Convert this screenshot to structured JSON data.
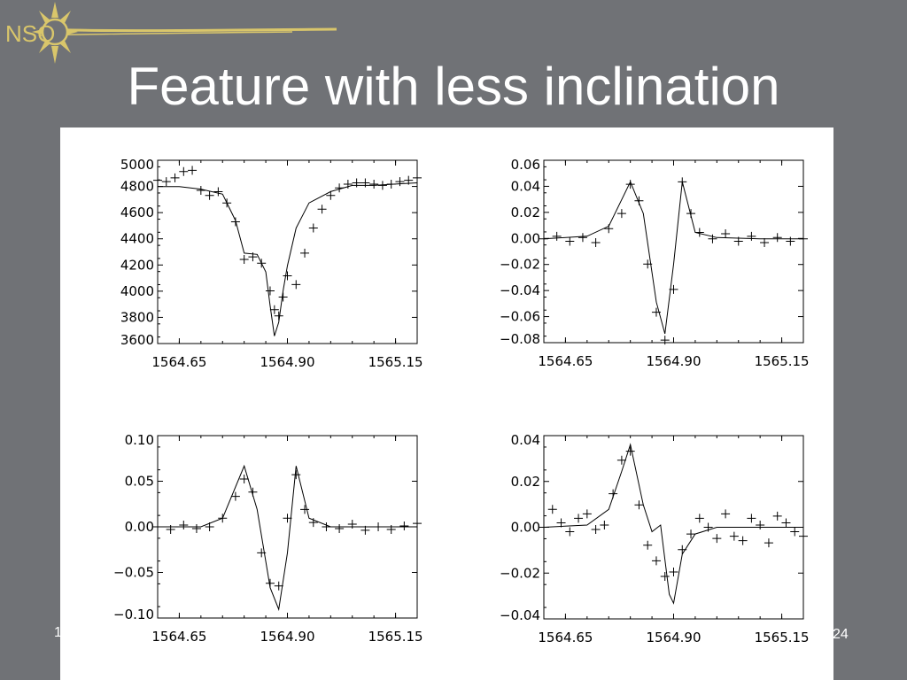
{
  "slide": {
    "title": "Feature with less inclination",
    "page_number": "24",
    "footer_left": "1",
    "logo_text": "NSO",
    "colors": {
      "background": "#707276",
      "logo": "#d9c66b",
      "title": "#ffffff",
      "panel": "#ffffff",
      "plot": "#000000"
    }
  },
  "chart_data": [
    {
      "type": "line",
      "panel": "top-left",
      "xlim": [
        1564.6,
        1565.2
      ],
      "ylim": [
        3580,
        5040
      ],
      "x_ticks": [
        "1564.65",
        "1564.90",
        "1565.15"
      ],
      "y_ticks": [
        "5000",
        "4800",
        "4600",
        "4400",
        "4200",
        "4000",
        "3800",
        "3600"
      ],
      "series": [
        {
          "style": "line",
          "x": [
            1564.6,
            1564.65,
            1564.7,
            1564.75,
            1564.78,
            1564.8,
            1564.83,
            1564.85,
            1564.86,
            1564.87,
            1564.88,
            1564.89,
            1564.9,
            1564.92,
            1564.95,
            1565.0,
            1565.05,
            1565.1,
            1565.15,
            1565.2
          ],
          "y": [
            4830,
            4830,
            4810,
            4770,
            4560,
            4300,
            4290,
            4150,
            3880,
            3640,
            3750,
            4000,
            4200,
            4500,
            4700,
            4790,
            4840,
            4840,
            4850,
            4860
          ]
        },
        {
          "style": "marker",
          "x": [
            1564.6,
            1564.62,
            1564.64,
            1564.66,
            1564.68,
            1564.7,
            1564.72,
            1564.74,
            1564.76,
            1564.78,
            1564.8,
            1564.82,
            1564.84,
            1564.86,
            1564.87,
            1564.88,
            1564.89,
            1564.9,
            1564.92,
            1564.94,
            1564.96,
            1564.98,
            1565.0,
            1565.02,
            1565.04,
            1565.06,
            1565.08,
            1565.1,
            1565.12,
            1565.14,
            1565.16,
            1565.18,
            1565.2
          ],
          "y": [
            4880,
            4870,
            4900,
            4950,
            4960,
            4800,
            4760,
            4790,
            4700,
            4550,
            4250,
            4270,
            4220,
            4000,
            3850,
            3800,
            3950,
            4120,
            4050,
            4300,
            4500,
            4650,
            4760,
            4820,
            4850,
            4860,
            4860,
            4850,
            4840,
            4850,
            4870,
            4880,
            4900
          ]
        }
      ]
    },
    {
      "type": "line",
      "panel": "top-right",
      "xlim": [
        1564.6,
        1565.2
      ],
      "ylim": [
        -0.082,
        0.062
      ],
      "x_ticks": [
        "1564.65",
        "1564.90",
        "1565.15"
      ],
      "y_ticks": [
        "0.06",
        "0.04",
        "0.02",
        "0.00",
        "−0.02",
        "−0.04",
        "−0.06",
        "−0.08"
      ],
      "series": [
        {
          "style": "line",
          "x": [
            1564.6,
            1564.7,
            1564.75,
            1564.8,
            1564.83,
            1564.86,
            1564.88,
            1564.9,
            1564.92,
            1564.95,
            1565.0,
            1565.1,
            1565.2
          ],
          "y": [
            0.0,
            0.002,
            0.01,
            0.045,
            0.02,
            -0.05,
            -0.075,
            -0.02,
            0.045,
            0.005,
            0.001,
            0.0,
            0.0
          ]
        },
        {
          "style": "marker",
          "x": [
            1564.6,
            1564.63,
            1564.66,
            1564.69,
            1564.72,
            1564.75,
            1564.78,
            1564.8,
            1564.82,
            1564.84,
            1564.86,
            1564.88,
            1564.9,
            1564.92,
            1564.94,
            1564.96,
            1564.99,
            1565.02,
            1565.05,
            1565.08,
            1565.11,
            1565.14,
            1565.17,
            1565.2
          ],
          "y": [
            0.0,
            0.002,
            -0.002,
            0.001,
            -0.003,
            0.008,
            0.02,
            0.043,
            0.03,
            -0.02,
            -0.058,
            -0.08,
            -0.04,
            0.045,
            0.02,
            0.005,
            0.0,
            0.004,
            -0.002,
            0.002,
            -0.003,
            0.001,
            -0.002,
            0.0
          ]
        }
      ]
    },
    {
      "type": "line",
      "panel": "bottom-left",
      "xlim": [
        1564.6,
        1565.2
      ],
      "ylim": [
        -0.105,
        0.105
      ],
      "x_ticks": [
        "1564.65",
        "1564.90",
        "1565.15"
      ],
      "y_ticks": [
        "0.10",
        "0.05",
        "0.00",
        "−0.05",
        "−0.10"
      ],
      "series": [
        {
          "style": "line",
          "x": [
            1564.6,
            1564.7,
            1564.75,
            1564.8,
            1564.83,
            1564.86,
            1564.88,
            1564.9,
            1564.92,
            1564.95,
            1565.0,
            1565.1,
            1565.2
          ],
          "y": [
            0.0,
            0.0,
            0.01,
            0.07,
            0.02,
            -0.07,
            -0.095,
            -0.03,
            0.07,
            0.01,
            0.0,
            0.0,
            0.0
          ]
        },
        {
          "style": "marker",
          "x": [
            1564.6,
            1564.63,
            1564.66,
            1564.69,
            1564.72,
            1564.75,
            1564.78,
            1564.8,
            1564.82,
            1564.84,
            1564.86,
            1564.88,
            1564.9,
            1564.92,
            1564.94,
            1564.96,
            1564.99,
            1565.02,
            1565.05,
            1565.08,
            1565.11,
            1565.14,
            1565.17,
            1565.2
          ],
          "y": [
            0.0,
            -0.003,
            0.002,
            -0.002,
            0.0,
            0.01,
            0.035,
            0.055,
            0.04,
            -0.03,
            -0.065,
            -0.068,
            0.01,
            0.06,
            0.02,
            0.005,
            0.0,
            -0.002,
            0.003,
            -0.004,
            0.0,
            -0.003,
            0.001,
            0.004
          ]
        }
      ]
    },
    {
      "type": "line",
      "panel": "bottom-right",
      "xlim": [
        1564.6,
        1565.2
      ],
      "ylim": [
        -0.041,
        0.041
      ],
      "x_ticks": [
        "1564.65",
        "1564.90",
        "1565.15"
      ],
      "y_ticks": [
        "0.04",
        "0.02",
        "0.00",
        "−0.02",
        "−0.04"
      ],
      "series": [
        {
          "style": "line",
          "x": [
            1564.6,
            1564.7,
            1564.75,
            1564.78,
            1564.8,
            1564.83,
            1564.85,
            1564.87,
            1564.89,
            1564.9,
            1564.92,
            1564.95,
            1565.0,
            1565.1,
            1565.2
          ],
          "y": [
            0.0,
            0.001,
            0.008,
            0.025,
            0.037,
            0.01,
            -0.002,
            0.001,
            -0.03,
            -0.034,
            -0.012,
            -0.003,
            0.0,
            0.0,
            0.0
          ]
        },
        {
          "style": "marker",
          "x": [
            1564.6,
            1564.62,
            1564.64,
            1564.66,
            1564.68,
            1564.7,
            1564.72,
            1564.74,
            1564.76,
            1564.78,
            1564.8,
            1564.82,
            1564.84,
            1564.86,
            1564.88,
            1564.9,
            1564.92,
            1564.94,
            1564.96,
            1564.98,
            1565.0,
            1565.02,
            1565.04,
            1565.06,
            1565.08,
            1565.1,
            1565.12,
            1565.14,
            1565.16,
            1565.18,
            1565.2
          ],
          "y": [
            0.0,
            0.008,
            0.002,
            -0.002,
            0.004,
            0.006,
            -0.001,
            0.001,
            0.015,
            0.03,
            0.034,
            0.01,
            -0.008,
            -0.015,
            -0.022,
            -0.02,
            -0.01,
            -0.003,
            0.004,
            0.0,
            -0.005,
            0.006,
            -0.004,
            -0.006,
            0.004,
            0.001,
            -0.007,
            0.005,
            0.002,
            -0.002,
            -0.004
          ]
        }
      ]
    }
  ]
}
